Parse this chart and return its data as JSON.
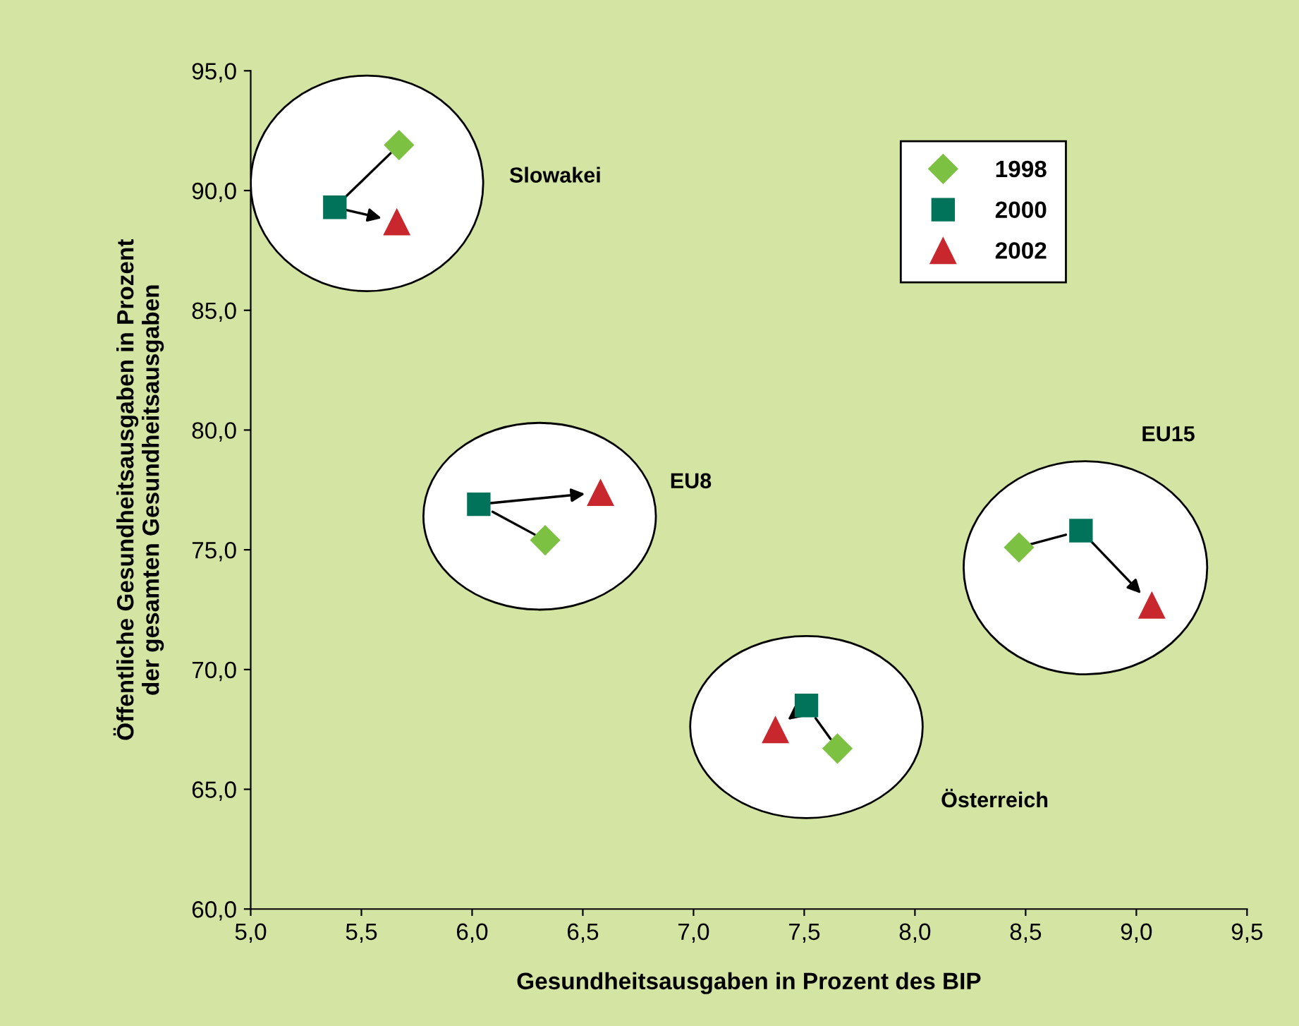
{
  "chart_data": {
    "type": "scatter",
    "xlabel": "Gesundheitsausgaben in Prozent des BIP",
    "ylabel": "Öffentliche Gesundheitsausgaben in Prozent\nder gesamten Gesundheitsausgaben",
    "series": [
      {
        "name": "1998",
        "color": "#7dc142",
        "marker": "diamond",
        "x": [
          5.67,
          6.33,
          7.65,
          8.47
        ],
        "values": [
          91.9,
          75.4,
          66.7,
          75.1
        ]
      },
      {
        "name": "2000",
        "color": "#00735a",
        "marker": "square",
        "x": [
          5.38,
          6.03,
          7.51,
          8.75
        ],
        "values": [
          89.3,
          76.9,
          68.5,
          75.8
        ]
      },
      {
        "name": "2002",
        "color": "#c8282d",
        "marker": "triangle",
        "x": [
          5.66,
          6.58,
          7.37,
          9.07
        ],
        "values": [
          88.7,
          77.4,
          67.5,
          72.7
        ]
      }
    ],
    "annotations": [
      "Slowakei",
      "EU8",
      "Österreich",
      "EU15"
    ],
    "xlim": [
      5.0,
      9.5
    ],
    "xticks": [
      {
        "value": 5.0,
        "label": "5,0"
      },
      {
        "value": 5.5,
        "label": "5,5"
      },
      {
        "value": 6.0,
        "label": "6,0"
      },
      {
        "value": 6.5,
        "label": "6,5"
      },
      {
        "value": 7.0,
        "label": "7,0"
      },
      {
        "value": 7.5,
        "label": "7,5"
      },
      {
        "value": 8.0,
        "label": "8,0"
      },
      {
        "value": 8.5,
        "label": "8,5"
      },
      {
        "value": 9.0,
        "label": "9,0"
      },
      {
        "value": 9.5,
        "label": "9,5"
      }
    ],
    "ylim": [
      60.0,
      95.0
    ],
    "yticks": [
      {
        "value": 60.0,
        "label": "60,0"
      },
      {
        "value": 65.0,
        "label": "65,0"
      },
      {
        "value": 70.0,
        "label": "70,0"
      },
      {
        "value": 75.0,
        "label": "75,0"
      },
      {
        "value": 80.0,
        "label": "80,0"
      },
      {
        "value": 85.0,
        "label": "85,0"
      },
      {
        "value": 90.0,
        "label": "90,0"
      },
      {
        "value": 95.0,
        "label": "95,0"
      }
    ],
    "grid": false,
    "legend": "top right"
  }
}
